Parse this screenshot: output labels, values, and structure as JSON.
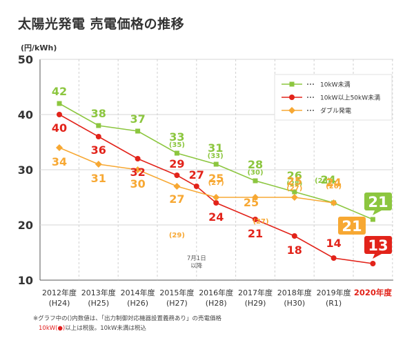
{
  "page": {
    "title": "太陽光発電 売電価格の推移",
    "unit": "(円/kWh)",
    "note1": "※グラフ中の()内数値は、「出力制御対応機器設置義務あり」の売電価格",
    "note2_red": "10kW(●)",
    "note2_rest": "以上は税抜。10kW未満は税込",
    "annotation": "7月1日\n以降"
  },
  "chart_data": {
    "type": "line",
    "title": "太陽光発電 売電価格の推移",
    "ylabel": "(円/kWh)",
    "xlabel": "",
    "ylim": [
      10,
      50
    ],
    "yticks": [
      10,
      20,
      30,
      40,
      50
    ],
    "grid": true,
    "legend_position": "top-right",
    "categories": [
      {
        "year": "2012年度",
        "era": "(H24)",
        "highlight": false
      },
      {
        "year": "2013年度",
        "era": "(H25)",
        "highlight": false
      },
      {
        "year": "2014年度",
        "era": "(H26)",
        "highlight": false
      },
      {
        "year": "2015年度",
        "era": "(H27)",
        "highlight": false
      },
      {
        "year": "2016年度",
        "era": "(H28)",
        "highlight": false
      },
      {
        "year": "2017年度",
        "era": "(H29)",
        "highlight": false
      },
      {
        "year": "2018年度",
        "era": "(H30)",
        "highlight": false
      },
      {
        "year": "2019年度",
        "era": "(R1)",
        "highlight": false
      },
      {
        "year": "2020年度",
        "era": "",
        "highlight": true
      }
    ],
    "series": [
      {
        "name": "10kW未満",
        "color": "#8cc63f",
        "marker": "square",
        "points": [
          {
            "x": 0,
            "y": 42
          },
          {
            "x": 1,
            "y": 38
          },
          {
            "x": 2,
            "y": 37
          },
          {
            "x": 3,
            "y": 33
          },
          {
            "x": 4,
            "y": 31
          },
          {
            "x": 5,
            "y": 28
          },
          {
            "x": 6,
            "y": 26
          },
          {
            "x": 7,
            "y": 24
          },
          {
            "x": 8,
            "y": 21
          }
        ],
        "labels": [
          {
            "x": 0,
            "text": "42",
            "sub": ""
          },
          {
            "x": 1,
            "text": "38",
            "sub": ""
          },
          {
            "x": 2,
            "text": "37",
            "sub": ""
          },
          {
            "x": 3,
            "text": "33",
            "sub": "(35)"
          },
          {
            "x": 4,
            "text": "31",
            "sub": "(33)"
          },
          {
            "x": 5,
            "text": "28",
            "sub": "(30)"
          },
          {
            "x": 6,
            "text": "26",
            "sub": "(28)"
          },
          {
            "x": 7,
            "text": "24",
            "sub": "(26)"
          }
        ],
        "callout": {
          "x": 8,
          "text": "21"
        }
      },
      {
        "name": "10kW以上50kW未満",
        "color": "#e2231a",
        "marker": "circle",
        "points": [
          {
            "x": 0,
            "y": 40
          },
          {
            "x": 1,
            "y": 36
          },
          {
            "x": 2,
            "y": 32
          },
          {
            "x": 3,
            "y": 29
          },
          {
            "x": 3.5,
            "y": 27
          },
          {
            "x": 4,
            "y": 24
          },
          {
            "x": 5,
            "y": 21
          },
          {
            "x": 6,
            "y": 18
          },
          {
            "x": 7,
            "y": 14
          },
          {
            "x": 8,
            "y": 13
          }
        ],
        "labels": [
          {
            "x": 0,
            "text": "40",
            "sub": ""
          },
          {
            "x": 1,
            "text": "36",
            "sub": ""
          },
          {
            "x": 2,
            "text": "32",
            "sub": ""
          },
          {
            "x": 3,
            "text": "29",
            "sub": ""
          },
          {
            "x": 3.5,
            "text": "27",
            "sub": ""
          },
          {
            "x": 4,
            "text": "24",
            "sub": ""
          },
          {
            "x": 5,
            "text": "21",
            "sub": ""
          },
          {
            "x": 6,
            "text": "18",
            "sub": ""
          },
          {
            "x": 7,
            "text": "14",
            "sub": ""
          }
        ],
        "callout": {
          "x": 8,
          "text": "13"
        }
      },
      {
        "name": "ダブル発電",
        "color": "#f7a833",
        "marker": "diamond",
        "points": [
          {
            "x": 0,
            "y": 34
          },
          {
            "x": 1,
            "y": 31
          },
          {
            "x": 2,
            "y": 30
          },
          {
            "x": 3,
            "y": 27
          },
          {
            "x": 4,
            "y": 25
          },
          {
            "x": 5,
            "y": 25
          },
          {
            "x": 6,
            "y": 25
          },
          {
            "x": 7,
            "y": 24
          }
        ],
        "labels": [
          {
            "x": 0,
            "text": "34",
            "sub": ""
          },
          {
            "x": 1,
            "text": "31",
            "sub": ""
          },
          {
            "x": 2,
            "text": "30",
            "sub": ""
          },
          {
            "x": 3,
            "text": "27",
            "sub": "(29)"
          },
          {
            "x": 4,
            "text": "25",
            "sub": "(27)"
          },
          {
            "x": 5,
            "text": "25",
            "sub": "(27)"
          },
          {
            "x": 6,
            "text": "25",
            "sub": "(27)"
          },
          {
            "x": 7,
            "text": "24",
            "sub": "(26)"
          }
        ],
        "callout": {
          "x": 8,
          "text": "21"
        }
      }
    ]
  }
}
